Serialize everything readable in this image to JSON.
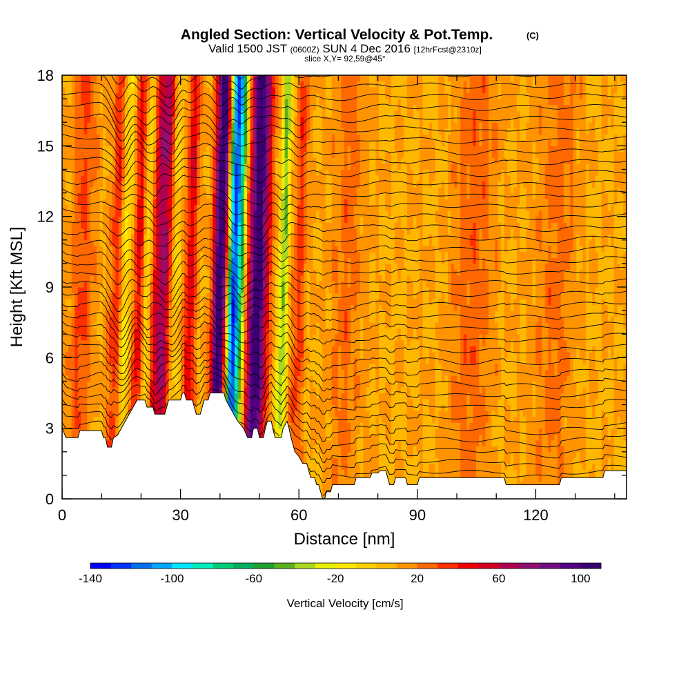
{
  "header": {
    "title": "Angled Section: Vertical Velocity & Pot.Temp.",
    "copyright": "(C)",
    "valid_prefix": "Valid 1500 JST",
    "valid_utc": "(0600Z)",
    "valid_date": "SUN 4 Dec 2016",
    "forecast": "[12hrFcst@2310z]",
    "slice": "slice X,Y= 92,59@45°"
  },
  "chart_data": {
    "type": "heatmap",
    "xlabel": "Distance [nm]",
    "ylabel": "Height [Kft MSL]",
    "xlim": [
      0,
      143
    ],
    "ylim": [
      0,
      18
    ],
    "x_ticks": [
      "0",
      "30",
      "60",
      "90",
      "120"
    ],
    "y_ticks": [
      "0",
      "3",
      "6",
      "9",
      "12",
      "15",
      "18"
    ],
    "colorbar": {
      "label": "Vertical Velocity [cm/s]",
      "min": -140,
      "max": 110,
      "step": 10,
      "tick_labels": [
        "-140",
        "-100",
        "-60",
        "-20",
        "20",
        "60",
        "100"
      ],
      "colors": [
        "#0000ff",
        "#0033ff",
        "#0070f0",
        "#00a8ff",
        "#00e6ff",
        "#00eebb",
        "#00cc77",
        "#00b060",
        "#20a030",
        "#5cb020",
        "#a8d820",
        "#e8f000",
        "#ffe800",
        "#ffd000",
        "#ffb800",
        "#ff9400",
        "#ff6800",
        "#ff3000",
        "#f00000",
        "#d00020",
        "#b00050",
        "#901070",
        "#701080",
        "#500080",
        "#3a0070"
      ]
    },
    "terrain_kft": [
      [
        0,
        3.0
      ],
      [
        1,
        2.6
      ],
      [
        4,
        2.6
      ],
      [
        4.5,
        2.9
      ],
      [
        10,
        2.9
      ],
      [
        10.5,
        2.6
      ],
      [
        11,
        2.6
      ],
      [
        11.5,
        2.2
      ],
      [
        12.5,
        2.2
      ],
      [
        13,
        2.6
      ],
      [
        14,
        2.7
      ],
      [
        15,
        3.0
      ],
      [
        16,
        3.3
      ],
      [
        17,
        3.6
      ],
      [
        18,
        3.9
      ],
      [
        19,
        4.2
      ],
      [
        21,
        4.2
      ],
      [
        21.5,
        3.9
      ],
      [
        23,
        3.9
      ],
      [
        23.5,
        3.6
      ],
      [
        26,
        3.6
      ],
      [
        26.5,
        3.9
      ],
      [
        27,
        4.2
      ],
      [
        30,
        4.2
      ],
      [
        30.5,
        4.5
      ],
      [
        31,
        4.5
      ],
      [
        31.5,
        4.2
      ],
      [
        33,
        4.2
      ],
      [
        33.5,
        3.9
      ],
      [
        34,
        3.6
      ],
      [
        35,
        3.6
      ],
      [
        35.5,
        3.9
      ],
      [
        36,
        4.2
      ],
      [
        37,
        4.2
      ],
      [
        37.5,
        4.5
      ],
      [
        41,
        4.5
      ],
      [
        41.5,
        4.2
      ],
      [
        42.5,
        3.9
      ],
      [
        43.5,
        3.6
      ],
      [
        44.5,
        3.3
      ],
      [
        46,
        3.0
      ],
      [
        47,
        2.6
      ],
      [
        48,
        2.6
      ],
      [
        48.5,
        3.0
      ],
      [
        49.5,
        3.0
      ],
      [
        50,
        2.6
      ],
      [
        51,
        2.6
      ],
      [
        51.5,
        3.0
      ],
      [
        52,
        3.3
      ],
      [
        53,
        3.3
      ],
      [
        53.5,
        2.9
      ],
      [
        54,
        2.6
      ],
      [
        55.5,
        2.6
      ],
      [
        56,
        3.0
      ],
      [
        57,
        3.3
      ],
      [
        57.5,
        3.0
      ],
      [
        58,
        2.6
      ],
      [
        58.5,
        2.3
      ],
      [
        59,
        2.0
      ],
      [
        60,
        1.8
      ],
      [
        61,
        1.5
      ],
      [
        62,
        1.5
      ],
      [
        62.5,
        1.2
      ],
      [
        63,
        0.9
      ],
      [
        64,
        0.9
      ],
      [
        64.5,
        0.6
      ],
      [
        65,
        0.6
      ],
      [
        65.5,
        0.3
      ],
      [
        66,
        0.0
      ],
      [
        66.5,
        0.0
      ],
      [
        67,
        0.3
      ],
      [
        68,
        0.3
      ],
      [
        68.5,
        0.6
      ],
      [
        74,
        0.6
      ],
      [
        74.5,
        0.9
      ],
      [
        78,
        0.9
      ],
      [
        78.5,
        1.1
      ],
      [
        80,
        1.1
      ],
      [
        80.5,
        1.2
      ],
      [
        82,
        1.2
      ],
      [
        82.5,
        0.9
      ],
      [
        83,
        0.6
      ],
      [
        84,
        0.6
      ],
      [
        84.5,
        0.9
      ],
      [
        87,
        0.9
      ],
      [
        87.5,
        0.6
      ],
      [
        90,
        0.6
      ],
      [
        90.5,
        0.9
      ],
      [
        112,
        0.9
      ],
      [
        112.5,
        0.6
      ],
      [
        126,
        0.6
      ],
      [
        126.5,
        0.9
      ],
      [
        137,
        0.9
      ],
      [
        137.5,
        1.2
      ],
      [
        143,
        1.2
      ]
    ],
    "updraft_bands": [
      {
        "x": 14,
        "dx": 1.8,
        "dip": 1.8,
        "w": 3.5
      },
      {
        "x": 15.8,
        "dx": 1.6,
        "dip": 1.6,
        "w": -3.0
      },
      {
        "x": 19.5,
        "dx": 1.6,
        "dip": 1.6,
        "w": 3.8
      },
      {
        "x": 21.5,
        "dx": 1.4,
        "dip": 1.4,
        "w": -2.5
      },
      {
        "x": 23.5,
        "dx": 1.2,
        "dip": 1.2,
        "w": 2.5
      },
      {
        "x": 26,
        "dx": 2.2,
        "dip": 1.8,
        "w": 6.5
      },
      {
        "x": 28,
        "dx": 1.6,
        "dip": 1.4,
        "w": -3.0
      },
      {
        "x": 32.5,
        "dx": 1.5,
        "dip": 1.0,
        "w": 4.0
      },
      {
        "x": 40,
        "dx": 1.8,
        "dip": 1.4,
        "w": 11.0
      },
      {
        "x": 43.5,
        "dx": 1.6,
        "dip": 1.2,
        "w": -13.5
      },
      {
        "x": 45.5,
        "dx": 1.2,
        "dip": 1.0,
        "w": -4.0
      },
      {
        "x": 49.5,
        "dx": 2.6,
        "dip": 1.6,
        "w": 10.0
      },
      {
        "x": 56,
        "dx": 1.2,
        "dip": 1.0,
        "w": -5.0
      },
      {
        "x": 60,
        "dx": 1.6,
        "dip": 0.8,
        "w": 2.5
      },
      {
        "x": 5,
        "dx": 3.0,
        "dip": 0.4,
        "w": 2.2
      },
      {
        "x": 72,
        "dx": 4.0,
        "dip": 0.3,
        "w": 1.5
      },
      {
        "x": 104,
        "dx": 5.0,
        "dip": 0.3,
        "w": 1.8
      },
      {
        "x": 125,
        "dx": 5.0,
        "dip": 0.2,
        "w": 1.5
      }
    ]
  }
}
